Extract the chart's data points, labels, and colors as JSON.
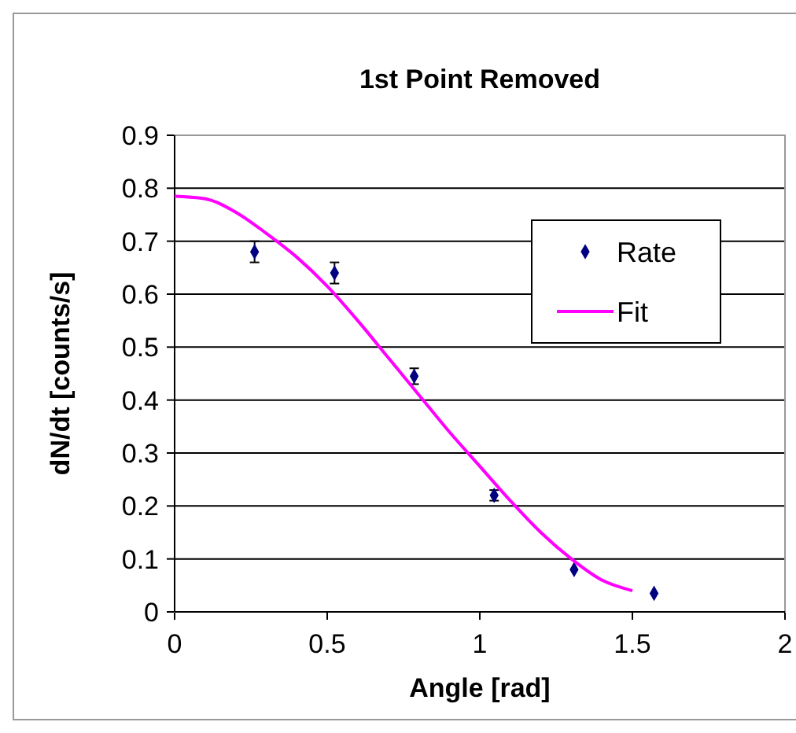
{
  "chart_data": {
    "type": "scatter",
    "title": "1st Point Removed",
    "xlabel": "Angle [rad]",
    "ylabel": "dN/dt [counts/s]",
    "xlim": [
      0,
      2
    ],
    "xticks": [
      0,
      0.5,
      1,
      1.5,
      2
    ],
    "ylim": [
      0,
      0.9
    ],
    "yticks": [
      0,
      0.1,
      0.2,
      0.3,
      0.4,
      0.5,
      0.6,
      0.7,
      0.8,
      0.9
    ],
    "grid": "y",
    "legend": "top right",
    "series": [
      {
        "name": "Rate",
        "color": "#000080",
        "marker": "diamond",
        "x": [
          0.262,
          0.524,
          0.785,
          1.047,
          1.309,
          1.571
        ],
        "values": [
          0.68,
          0.64,
          0.445,
          0.22,
          0.08,
          0.035
        ],
        "errors": [
          0.02,
          0.02,
          0.015,
          0.01,
          null,
          null
        ]
      },
      {
        "name": "Fit",
        "type": "line",
        "color": "#ff00ff",
        "marker": "none",
        "x": [
          0,
          0.1,
          0.2,
          0.3,
          0.4,
          0.5,
          0.6,
          0.7,
          0.8,
          0.9,
          1.0,
          1.1,
          1.2,
          1.3,
          1.4,
          1.5
        ],
        "values": [
          0.785,
          0.78,
          0.755,
          0.715,
          0.67,
          0.615,
          0.55,
          0.48,
          0.41,
          0.34,
          0.275,
          0.21,
          0.15,
          0.1,
          0.06,
          0.04
        ]
      }
    ]
  }
}
